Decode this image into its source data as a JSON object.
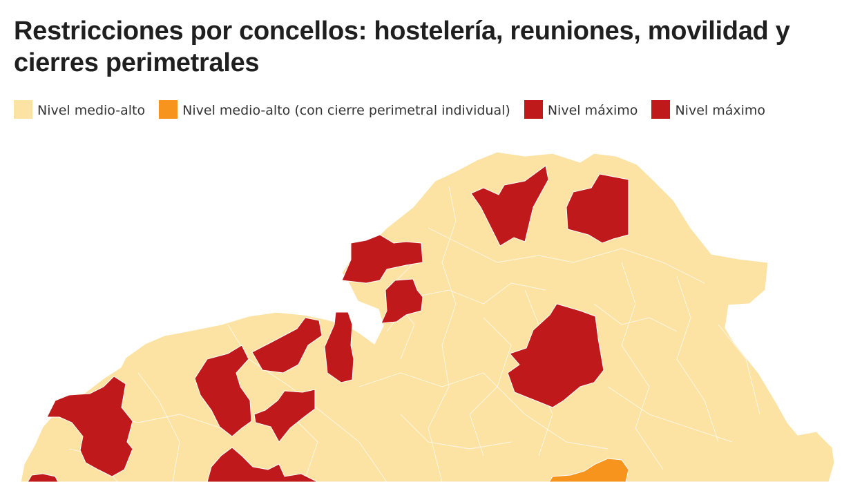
{
  "header": {
    "title": "Restricciones por concellos: hostelería, reuniones, movilidad y cierres perimetrales"
  },
  "legend": {
    "items": [
      {
        "label": "Nivel medio-alto",
        "color": "#fce3a4"
      },
      {
        "label": "Nivel medio-alto (con cierre perimetral individual)",
        "color": "#f7941d"
      },
      {
        "label": "Nivel máximo",
        "color": "#c0191c"
      },
      {
        "label": "Nivel máximo",
        "color": "#c0191c"
      }
    ]
  },
  "map": {
    "colors": {
      "base": "#fce3a4",
      "perimetral": "#f7941d",
      "maximo": "#c0191c",
      "border": "#ffffff",
      "sea": "#ffffff"
    }
  }
}
